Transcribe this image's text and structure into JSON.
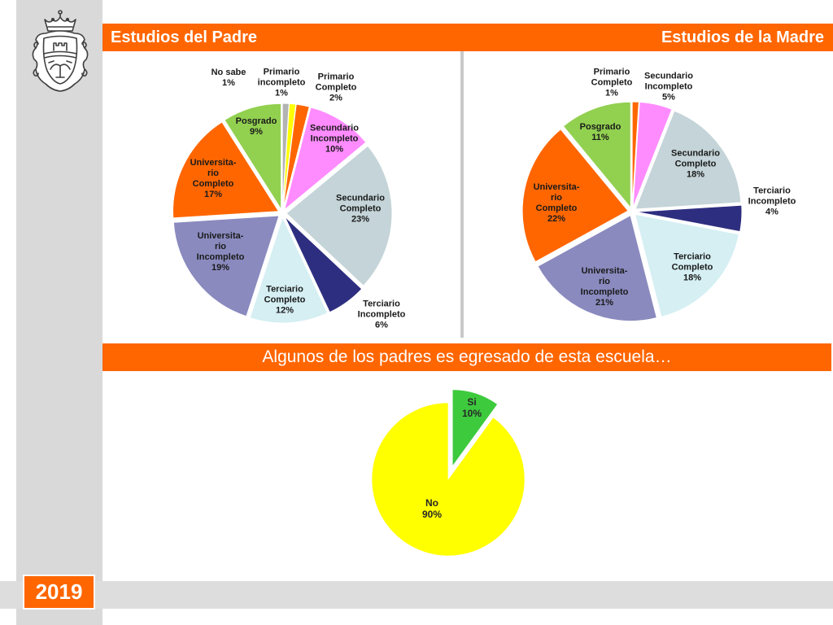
{
  "slide": {
    "year": "2019",
    "logo_icon": "university-crest-icon",
    "colors": {
      "accent": "#ff6600",
      "sidebar": "#d9d9d9",
      "footer_band": "#dddddd",
      "header_text": "#ffffff"
    }
  },
  "chart_data": [
    {
      "type": "pie",
      "title": "Estudios del Padre",
      "labels": [
        "No sabe",
        "Primario\nincompleto",
        "Primario\nCompleto",
        "Secundario\nIncompleto",
        "Secundario\nCompleto",
        "Terciario\nIncompleto",
        "Terciario\nCompleto",
        "Universita-\nrio\nIncompleto",
        "Universita-\nrio\nCompleto",
        "Posgrado"
      ],
      "values": [
        1,
        1,
        2,
        10,
        23,
        6,
        12,
        19,
        17,
        9
      ],
      "colors": [
        "#b3b3b3",
        "#ffff00",
        "#ff6600",
        "#ff8cff",
        "#c4d4d8",
        "#2e2e80",
        "#d5eff3",
        "#8a8abf",
        "#ff6600",
        "#92d050"
      ],
      "legend": "none"
    },
    {
      "type": "pie",
      "title": "Estudios de la Madre",
      "labels": [
        "Primario\nCompleto",
        "Secundario\nIncompleto",
        "Secundario\nCompleto",
        "Terciario\nIncompleto",
        "Terciario\nCompleto",
        "Universita-\nrio\nIncompleto",
        "Universita-\nrio\nCompleto",
        "Posgrado"
      ],
      "values": [
        1,
        5,
        18,
        4,
        18,
        21,
        22,
        11
      ],
      "colors": [
        "#ff6600",
        "#ff8cff",
        "#c4d4d8",
        "#2e2e80",
        "#d5eff3",
        "#8a8abf",
        "#ff6600",
        "#92d050"
      ],
      "legend": "none"
    },
    {
      "type": "pie",
      "title": "Algunos de los padres es egresado de esta escuela…",
      "labels": [
        "Si",
        "No"
      ],
      "values": [
        10,
        90
      ],
      "colors": [
        "#3dca3d",
        "#ffff00"
      ],
      "legend": "none"
    }
  ]
}
